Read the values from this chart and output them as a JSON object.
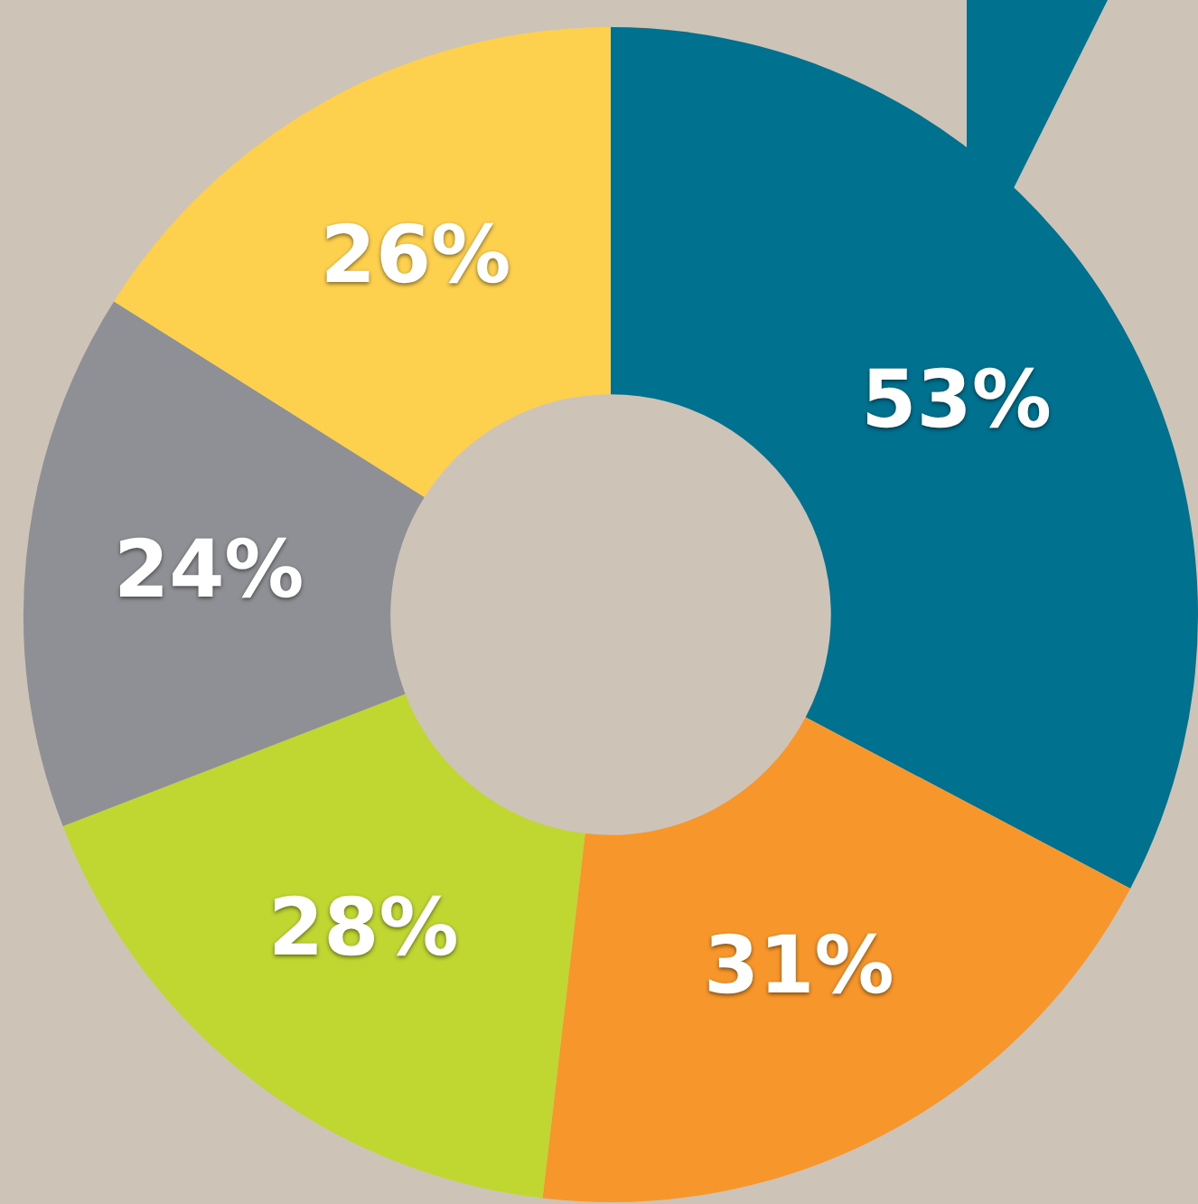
{
  "chart_data": {
    "type": "donut",
    "categories": [
      null,
      null,
      null,
      null,
      null
    ],
    "values": [
      53,
      31,
      28,
      24,
      26
    ],
    "colors": [
      "#00718f",
      "#f7962a",
      "#c0d631",
      "#8f9095",
      "#fdd04e"
    ],
    "value_labels": [
      "53%",
      "31%",
      "28%",
      "24%",
      "26%"
    ],
    "legend": false
  }
}
